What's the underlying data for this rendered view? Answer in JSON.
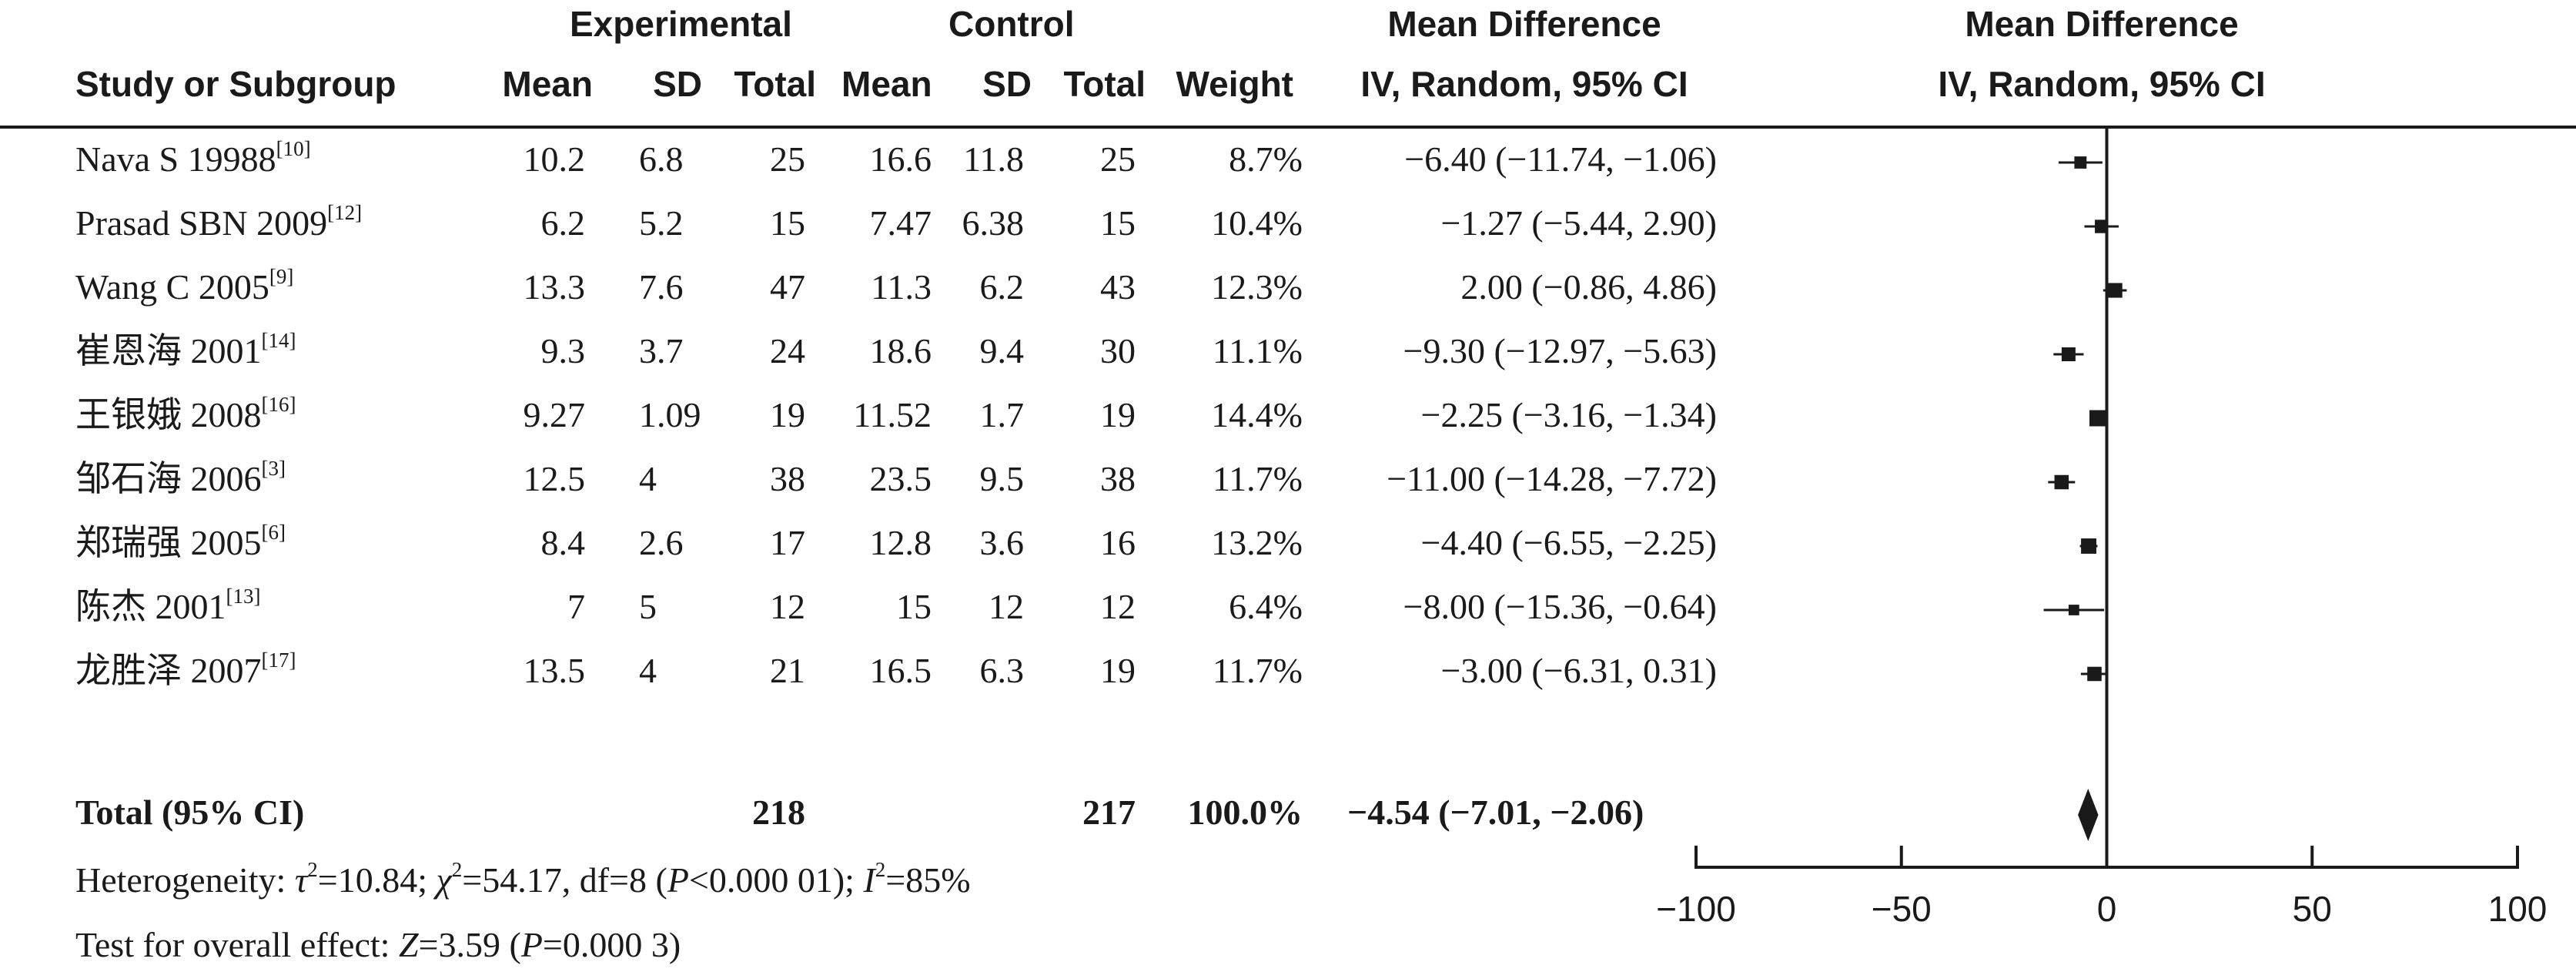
{
  "headers": {
    "experimental": "Experimental",
    "control": "Control",
    "mean_difference_col": "Mean Difference",
    "mean_difference_plot": "Mean Difference",
    "study": "Study or Subgroup",
    "mean": "Mean",
    "sd": "SD",
    "total": "Total",
    "mean_c": "Mean",
    "sd_c": "SD",
    "total_c": "Total",
    "weight": "Weight",
    "method_col": "IV, Random, 95% CI",
    "method_plot": "IV, Random, 95% CI"
  },
  "studies": [
    {
      "name": "Nava S 19988",
      "ref": "[10]",
      "e_mean": "10.2",
      "e_sd": "6.8",
      "e_total": "25",
      "c_mean": "16.6",
      "c_sd": "11.8",
      "c_total": "25",
      "weight": "8.7%",
      "ci_text": "−6.40 (−11.74, −1.06)"
    },
    {
      "name": "Prasad SBN 2009",
      "ref": "[12]",
      "e_mean": "6.2",
      "e_sd": "5.2",
      "e_total": "15",
      "c_mean": "7.47",
      "c_sd": "6.38",
      "c_total": "15",
      "weight": "10.4%",
      "ci_text": "−1.27 (−5.44, 2.90)"
    },
    {
      "name": "Wang C 2005",
      "ref": "[9]",
      "e_mean": "13.3",
      "e_sd": "7.6",
      "e_total": "47",
      "c_mean": "11.3",
      "c_sd": "6.2",
      "c_total": "43",
      "weight": "12.3%",
      "ci_text": "2.00 (−0.86, 4.86)"
    },
    {
      "name": "崔恩海 2001",
      "ref": "[14]",
      "e_mean": "9.3",
      "e_sd": "3.7",
      "e_total": "24",
      "c_mean": "18.6",
      "c_sd": "9.4",
      "c_total": "30",
      "weight": "11.1%",
      "ci_text": "−9.30 (−12.97, −5.63)"
    },
    {
      "name": "王银娥 2008",
      "ref": "[16]",
      "e_mean": "9.27",
      "e_sd": "1.09",
      "e_total": "19",
      "c_mean": "11.52",
      "c_sd": "1.7",
      "c_total": "19",
      "weight": "14.4%",
      "ci_text": "−2.25 (−3.16, −1.34)"
    },
    {
      "name": "邹石海 2006",
      "ref": "[3]",
      "e_mean": "12.5",
      "e_sd": "4",
      "e_total": "38",
      "c_mean": "23.5",
      "c_sd": "9.5",
      "c_total": "38",
      "weight": "11.7%",
      "ci_text": "−11.00 (−14.28, −7.72)"
    },
    {
      "name": "郑瑞强 2005",
      "ref": "[6]",
      "e_mean": "8.4",
      "e_sd": "2.6",
      "e_total": "17",
      "c_mean": "12.8",
      "c_sd": "3.6",
      "c_total": "16",
      "weight": "13.2%",
      "ci_text": "−4.40 (−6.55, −2.25)"
    },
    {
      "name": "陈杰 2001",
      "ref": "[13]",
      "e_mean": "7",
      "e_sd": "5",
      "e_total": "12",
      "c_mean": "15",
      "c_sd": "12",
      "c_total": "12",
      "weight": "6.4%",
      "ci_text": "−8.00 (−15.36, −0.64)"
    },
    {
      "name": "龙胜泽 2007",
      "ref": "[17]",
      "e_mean": "13.5",
      "e_sd": "4",
      "e_total": "21",
      "c_mean": "16.5",
      "c_sd": "6.3",
      "c_total": "19",
      "weight": "11.7%",
      "ci_text": "−3.00 (−6.31, 0.31)"
    }
  ],
  "total": {
    "label": "Total (95% CI)",
    "e_total": "218",
    "c_total": "217",
    "weight": "100.0%",
    "ci_text": "−4.54 (−7.01, −2.06)"
  },
  "footer": {
    "het_prefix": "Heterogeneity: ",
    "tau": "τ",
    "tau_sup": "2",
    "tau_val": "=10.84; ",
    "chi": "χ",
    "chi_sup": "2",
    "chi_val": "=54.17, df=8 (",
    "p1": "P",
    "p1_val": "<0.000 01); ",
    "i": "I",
    "i_sup": "2",
    "i_val": "=85%",
    "test_prefix": "Test for overall effect: ",
    "z": "Z",
    "z_val": "=3.59 (",
    "p2": "P",
    "p2_val": "=0.000 3)"
  },
  "chart_data": {
    "type": "forest",
    "x_ticks": [
      "−100",
      "−50",
      "0",
      "50",
      "100"
    ],
    "xlim": [
      -100,
      100
    ],
    "studies": [
      {
        "md": -6.4,
        "lo": -11.74,
        "hi": -1.06,
        "weight": 8.7
      },
      {
        "md": -1.27,
        "lo": -5.44,
        "hi": 2.9,
        "weight": 10.4
      },
      {
        "md": 2.0,
        "lo": -0.86,
        "hi": 4.86,
        "weight": 12.3
      },
      {
        "md": -9.3,
        "lo": -12.97,
        "hi": -5.63,
        "weight": 11.1
      },
      {
        "md": -2.25,
        "lo": -3.16,
        "hi": -1.34,
        "weight": 14.4
      },
      {
        "md": -11.0,
        "lo": -14.28,
        "hi": -7.72,
        "weight": 11.7
      },
      {
        "md": -4.4,
        "lo": -6.55,
        "hi": -2.25,
        "weight": 13.2
      },
      {
        "md": -8.0,
        "lo": -15.36,
        "hi": -0.64,
        "weight": 6.4
      },
      {
        "md": -3.0,
        "lo": -6.31,
        "hi": 0.31,
        "weight": 11.7
      }
    ],
    "pooled": {
      "md": -4.54,
      "lo": -7.01,
      "hi": -2.06
    },
    "colors": {
      "ink": "#1a1a1a"
    }
  }
}
